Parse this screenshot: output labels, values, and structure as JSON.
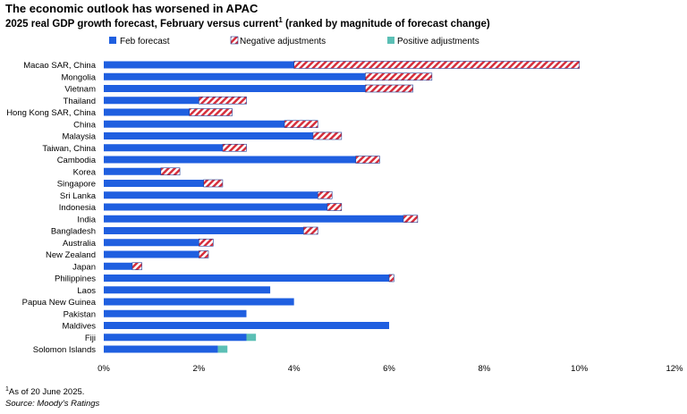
{
  "title": "The economic outlook has worsened in APAC",
  "subtitle": "2025 real GDP growth forecast, February versus current",
  "subtitle_sup": "1",
  "subtitle_suffix": " (ranked by magnitude of forecast change)",
  "footnote_sup": "1",
  "footnote": "As of 20 June 2025.",
  "source": "Source: Moody's Ratings",
  "colors": {
    "feb": "#1f5fe0",
    "negative_stripe_a": "#d62f3c",
    "negative_stripe_b": "#ffffff",
    "negative_border": "#1f3a93",
    "positive": "#5bbfb5"
  },
  "chart_data": {
    "type": "bar",
    "orientation": "horizontal",
    "stacked": true,
    "legend_position": "top",
    "grid": false,
    "xlim": [
      0,
      12
    ],
    "x_ticks": [
      "0%",
      "2%",
      "4%",
      "6%",
      "8%",
      "10%",
      "12%"
    ],
    "x_tick_values": [
      0,
      2,
      4,
      6,
      8,
      10,
      12
    ],
    "categories": [
      "Macao SAR, China",
      "Mongolia",
      "Vietnam",
      "Thailand",
      "Hong Kong SAR, China",
      "China",
      "Malaysia",
      "Taiwan, China",
      "Cambodia",
      "Korea",
      "Singapore",
      "Sri Lanka",
      "Indonesia",
      "India",
      "Bangladesh",
      "Australia",
      "New Zealand",
      "Japan",
      "Philippines",
      "Laos",
      "Papua New Guinea",
      "Pakistan",
      "Maldives",
      "Fiji",
      "Solomon Islands"
    ],
    "series": [
      {
        "name": "Feb forecast",
        "values": [
          4.0,
          5.5,
          5.5,
          2.0,
          1.8,
          3.8,
          4.4,
          2.5,
          5.3,
          1.2,
          2.1,
          4.5,
          4.7,
          6.3,
          4.2,
          2.0,
          2.0,
          0.6,
          6.0,
          3.5,
          4.0,
          3.0,
          6.0,
          3.0,
          2.4
        ]
      },
      {
        "name": "Negative adjustments",
        "values": [
          6.0,
          1.4,
          1.0,
          1.0,
          0.9,
          0.7,
          0.6,
          0.5,
          0.5,
          0.4,
          0.4,
          0.3,
          0.3,
          0.3,
          0.3,
          0.3,
          0.2,
          0.2,
          0.1,
          0,
          0,
          0,
          0,
          0,
          0
        ]
      },
      {
        "name": "Positive adjustments",
        "values": [
          0,
          0,
          0,
          0,
          0,
          0,
          0,
          0,
          0,
          0,
          0,
          0,
          0,
          0,
          0,
          0,
          0,
          0,
          0,
          0,
          0,
          0,
          0,
          0.2,
          0.2
        ]
      }
    ]
  }
}
